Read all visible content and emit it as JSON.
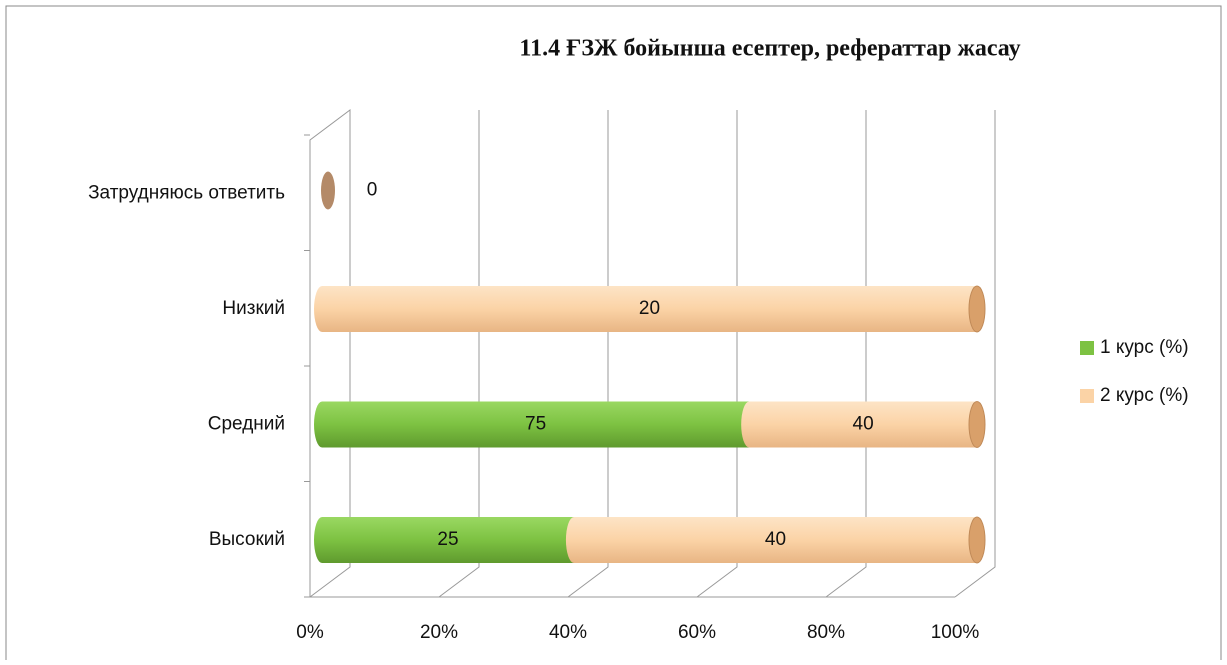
{
  "chart_data": {
    "type": "bar",
    "stacking": "percent",
    "orientation": "horizontal",
    "title": "11.4  ҒЗЖ бойынша есептер, рефераттар жасау",
    "categories": [
      "Высокий",
      "Средний",
      "Низкий",
      "Затрудняюсь ответить"
    ],
    "series": [
      {
        "name": "1 курс (%)",
        "color": "#7dc242",
        "values": [
          25,
          75,
          0,
          null
        ]
      },
      {
        "name": "2 курс (%)",
        "color": "#fbd3a6",
        "values": [
          40,
          40,
          20,
          0
        ]
      }
    ],
    "xlim": [
      0,
      100
    ],
    "xticks": [
      {
        "value": 0,
        "label": "0%"
      },
      {
        "value": 20,
        "label": "20%"
      },
      {
        "value": 40,
        "label": "40%"
      },
      {
        "value": 60,
        "label": "60%"
      },
      {
        "value": 80,
        "label": "80%"
      },
      {
        "value": 100,
        "label": "100%"
      }
    ],
    "grid": true,
    "legend": "right"
  }
}
